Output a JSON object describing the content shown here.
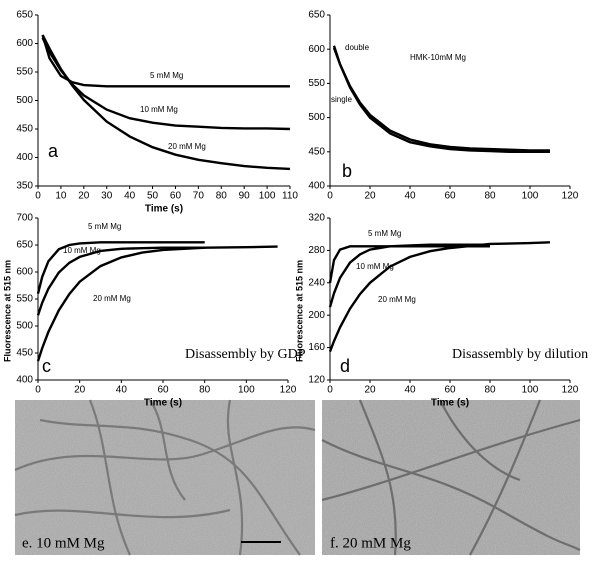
{
  "chart_data": [
    {
      "type": "line",
      "panel": "a",
      "xlabel": "Time (s)",
      "xlim": [
        0,
        110
      ],
      "xticks": [
        0,
        10,
        20,
        30,
        40,
        50,
        60,
        70,
        80,
        90,
        100,
        110
      ],
      "ylim": [
        350,
        650
      ],
      "yticks": [
        350,
        400,
        450,
        500,
        550,
        600,
        650
      ],
      "x": [
        2,
        5,
        10,
        15,
        20,
        30,
        40,
        50,
        60,
        70,
        80,
        90,
        100,
        110
      ],
      "series": [
        {
          "name": "5 mM Mg",
          "color": "#000000",
          "values": [
            615,
            574,
            543,
            532,
            527,
            525,
            525,
            525,
            525,
            525,
            525,
            525,
            525,
            525
          ]
        },
        {
          "name": "10 mM Mg",
          "color": "#000000",
          "values": [
            610,
            585,
            553,
            528,
            509,
            484,
            469,
            461,
            456,
            454,
            452,
            451,
            451,
            450
          ]
        },
        {
          "name": "20 mM Mg",
          "color": "#000000",
          "values": [
            615,
            591,
            555,
            526,
            501,
            463,
            437,
            418,
            405,
            396,
            390,
            385,
            382,
            380
          ]
        }
      ]
    },
    {
      "type": "line",
      "panel": "b",
      "note": "HMK-10mM Mg",
      "xlim": [
        0,
        120
      ],
      "xticks": [
        0,
        20,
        40,
        60,
        80,
        100,
        120
      ],
      "ylim": [
        400,
        650
      ],
      "yticks": [
        400,
        450,
        500,
        550,
        600,
        650
      ],
      "x": [
        2,
        5,
        10,
        15,
        20,
        30,
        40,
        50,
        60,
        70,
        80,
        90,
        100,
        110
      ],
      "series": [
        {
          "name": "double",
          "color": "#000000",
          "values": [
            605,
            578,
            544,
            519,
            500,
            477,
            464,
            458,
            454,
            452,
            451,
            450,
            450,
            450
          ]
        },
        {
          "name": "single",
          "color": "#000000",
          "values": [
            602,
            578,
            546,
            522,
            504,
            481,
            468,
            461,
            457,
            455,
            454,
            453,
            452,
            452
          ]
        }
      ]
    },
    {
      "type": "line",
      "panel": "c",
      "note": "Disassembly by GDP",
      "xlabel": "Time (s)",
      "ylabel": "Fluorescence at 515 nm",
      "xlim": [
        0,
        120
      ],
      "xticks": [
        0,
        20,
        40,
        60,
        80,
        100,
        120
      ],
      "ylim": [
        400,
        700
      ],
      "yticks": [
        400,
        450,
        500,
        550,
        600,
        650,
        700
      ],
      "x": [
        0,
        2,
        5,
        10,
        15,
        20,
        30,
        40,
        50,
        60,
        80,
        100,
        115
      ],
      "series": [
        {
          "name": "5 mM Mg",
          "color": "#000000",
          "values": [
            560,
            591,
            620,
            642,
            650,
            653,
            655,
            655,
            655,
            655,
            655,
            null,
            null
          ]
        },
        {
          "name": "10 mM Mg",
          "color": "#000000",
          "values": [
            520,
            543,
            569,
            599,
            617,
            628,
            639,
            643,
            644,
            645,
            645,
            null,
            null
          ]
        },
        {
          "name": "20 mM Mg",
          "color": "#000000",
          "values": [
            435,
            459,
            489,
            529,
            559,
            582,
            611,
            627,
            636,
            641,
            645,
            646,
            647
          ]
        }
      ]
    },
    {
      "type": "line",
      "panel": "d",
      "note": "Disassembly by dilution",
      "xlabel": "Time (s)",
      "ylabel": "Fluorescence at 515 nm",
      "xlim": [
        0,
        120
      ],
      "xticks": [
        0,
        20,
        40,
        60,
        80,
        100,
        120
      ],
      "ylim": [
        120,
        320
      ],
      "yticks": [
        120,
        160,
        200,
        240,
        280,
        320
      ],
      "x": [
        0,
        2,
        5,
        10,
        15,
        20,
        30,
        40,
        50,
        60,
        80,
        100,
        110
      ],
      "series": [
        {
          "name": "5 mM Mg",
          "color": "#000000",
          "values": [
            240,
            268,
            281,
            285,
            285,
            285,
            285,
            285,
            285,
            285,
            285,
            null,
            null
          ]
        },
        {
          "name": "10 mM Mg",
          "color": "#000000",
          "values": [
            210,
            227,
            246,
            265,
            275,
            281,
            285,
            286,
            287,
            287,
            287,
            null,
            null
          ]
        },
        {
          "name": "20 mM Mg",
          "color": "#000000",
          "values": [
            155,
            168,
            185,
            208,
            226,
            240,
            260,
            272,
            279,
            283,
            288,
            289,
            290
          ]
        }
      ]
    }
  ],
  "images": [
    {
      "label": "e. 10 mM Mg"
    },
    {
      "label": "f. 20 mM Mg"
    }
  ]
}
